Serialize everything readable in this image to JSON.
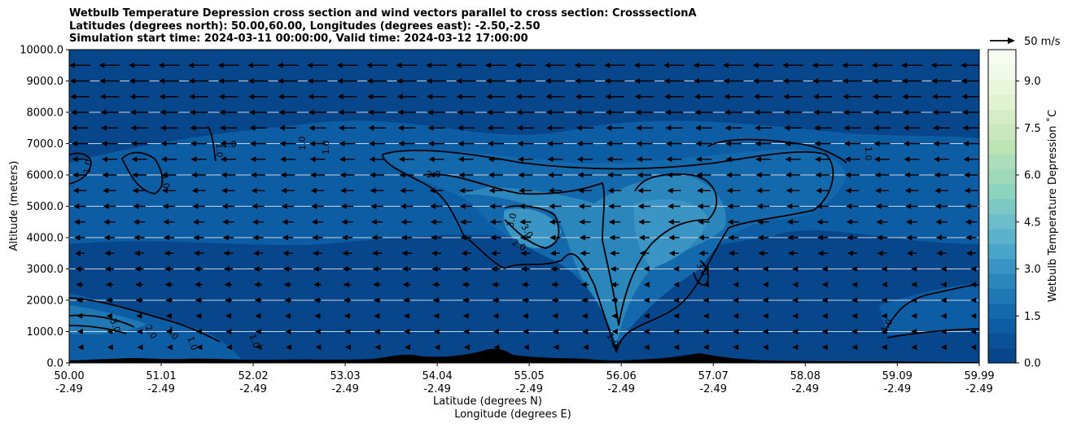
{
  "title_lines": [
    "Wetbulb Temperature Depression cross section and wind vectors parallel to cross section: CrosssectionA",
    "Latitudes (degrees north): 50.00,60.00, Longitudes (degrees east): -2.50,-2.50",
    "Simulation start time: 2024-03-11 00:00:00, Valid time: 2024-03-12 17:00:00"
  ],
  "chart_data": {
    "type": "heatmap",
    "title": "Wetbulb Temperature Depression cross section and wind vectors parallel to cross section: CrosssectionA",
    "ylabel": "Altitude (meters)",
    "xlabel_lines": [
      "Latitude (degrees N)",
      "Longitude (degrees E)"
    ],
    "xlim": [
      50.0,
      59.99
    ],
    "ylim": [
      0,
      10000
    ],
    "x_ticks": [
      {
        "lat": "50.00",
        "lon": "-2.49",
        "value": 50.0
      },
      {
        "lat": "51.01",
        "lon": "-2.49",
        "value": 51.01
      },
      {
        "lat": "52.02",
        "lon": "-2.49",
        "value": 52.02
      },
      {
        "lat": "53.03",
        "lon": "-2.49",
        "value": 53.03
      },
      {
        "lat": "54.04",
        "lon": "-2.49",
        "value": 54.04
      },
      {
        "lat": "55.05",
        "lon": "-2.49",
        "value": 55.05
      },
      {
        "lat": "56.06",
        "lon": "-2.49",
        "value": 56.06
      },
      {
        "lat": "57.07",
        "lon": "-2.49",
        "value": 57.07
      },
      {
        "lat": "58.08",
        "lon": "-2.49",
        "value": 58.08
      },
      {
        "lat": "59.09",
        "lon": "-2.49",
        "value": 59.09
      },
      {
        "lat": "59.99",
        "lon": "-2.49",
        "value": 59.99
      }
    ],
    "y_ticks": [
      {
        "label": "0.0",
        "value": 0
      },
      {
        "label": "1000.0",
        "value": 1000
      },
      {
        "label": "2000.0",
        "value": 2000
      },
      {
        "label": "3000.0",
        "value": 3000
      },
      {
        "label": "4000.0",
        "value": 4000
      },
      {
        "label": "5000.0",
        "value": 5000
      },
      {
        "label": "6000.0",
        "value": 6000
      },
      {
        "label": "7000.0",
        "value": 7000
      },
      {
        "label": "8000.0",
        "value": 8000
      },
      {
        "label": "9000.0",
        "value": 9000
      },
      {
        "label": "10000.0",
        "value": 10000
      }
    ],
    "grid": "horizontal",
    "colorbar": {
      "label": "Wetbulb Temperature Depression ˚C",
      "range": [
        0,
        10
      ],
      "tick_labels": [
        {
          "label": "0.0",
          "value": 0
        },
        {
          "label": "1.5",
          "value": 1.5
        },
        {
          "label": "3.0",
          "value": 3
        },
        {
          "label": "4.5",
          "value": 4.5
        },
        {
          "label": "6.0",
          "value": 6
        },
        {
          "label": "7.5",
          "value": 7.5
        },
        {
          "label": "9.0",
          "value": 9
        }
      ],
      "colors": [
        "#08468c",
        "#0a5198",
        "#0d5da4",
        "#1469ad",
        "#1f77b4",
        "#2b86bc",
        "#3a95c4",
        "#4aa5cb",
        "#5bb2cc",
        "#6cbfca",
        "#7cc9c4",
        "#8dd3be",
        "#9dd9b9",
        "#add ebb",
        "#bce4b5",
        "#c9e8bd",
        "#d5edc6",
        "#e0f3d0",
        "#eaf6da",
        "#f1faea",
        "#f7fcf0"
      ]
    },
    "contour_labels": [
      "1.0",
      "2.0",
      "3.0"
    ],
    "wind_key": {
      "label": "50 m/s",
      "value": 50
    }
  }
}
